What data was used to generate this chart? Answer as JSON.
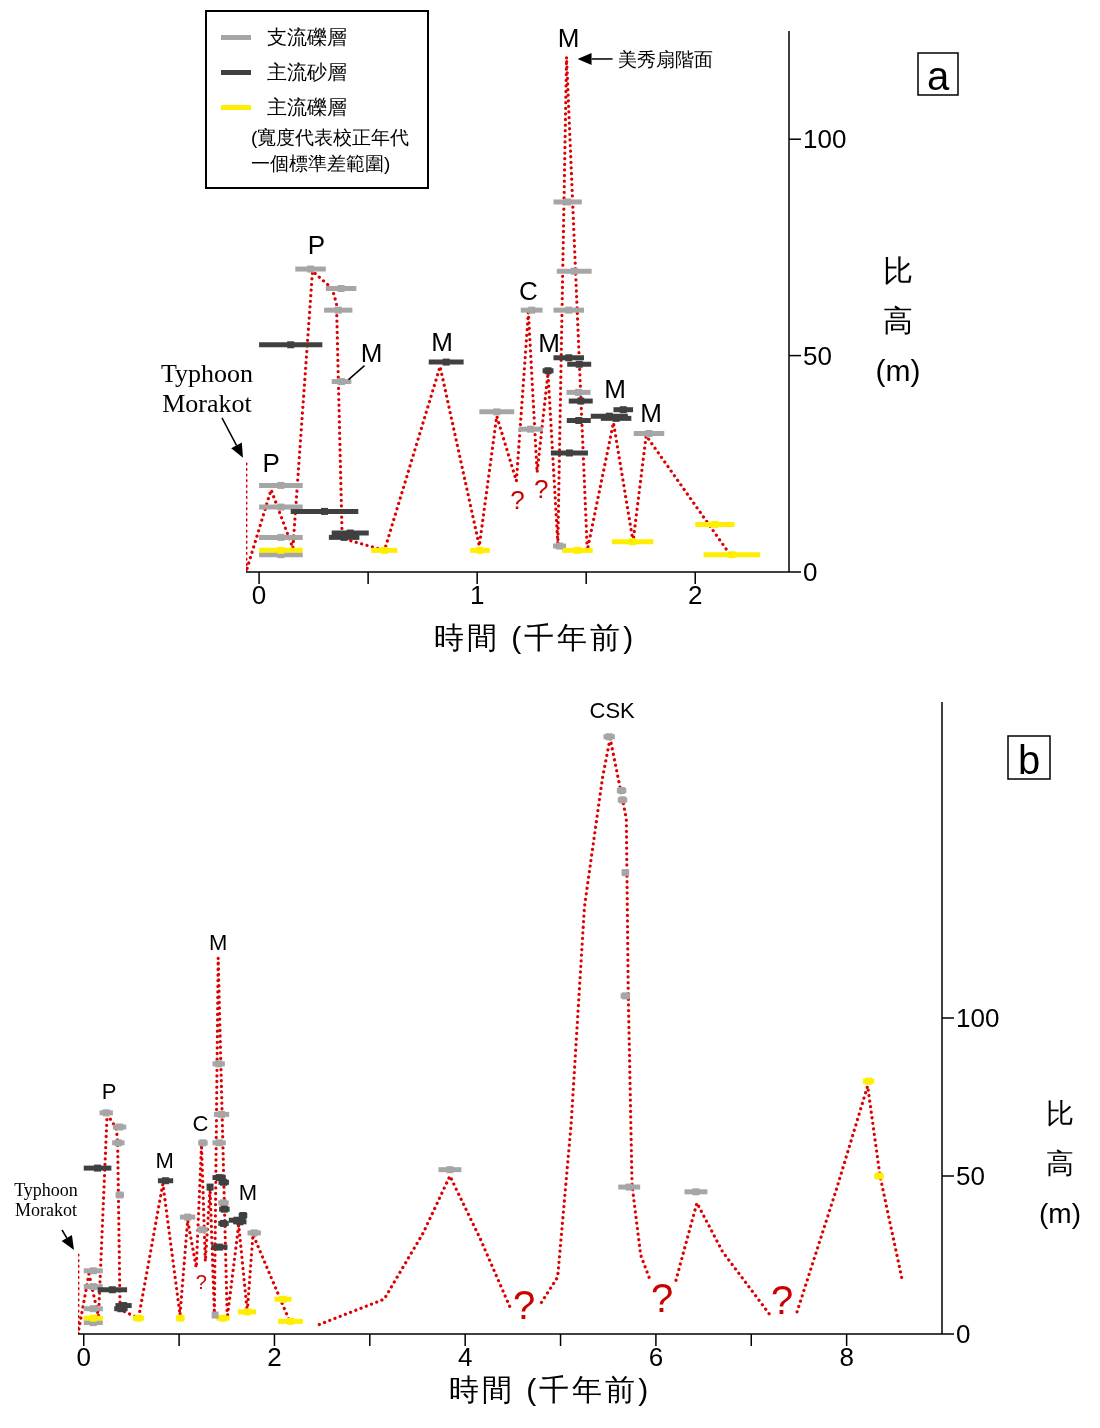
{
  "chart_data": [
    {
      "type": "scatter",
      "xlabel": "時間 (千年前)",
      "ylabel": "比高 (m)",
      "xlim": [
        -0.06,
        2.43
      ],
      "ylim": [
        0,
        125
      ],
      "xticks": [
        0,
        {
          "value": 0.5,
          "label": null
        },
        1,
        {
          "value": 1.5,
          "label": null
        },
        2
      ],
      "yticks": [
        0,
        50,
        100
      ],
      "legend": "top left",
      "marker": "square",
      "series": [
        {
          "name": "支流礫層",
          "color": "#a6a6a6",
          "x": [
            0.1,
            0.1,
            0.1,
            0.1,
            0.236,
            0.376,
            0.363,
            0.378,
            1.09,
            1.25,
            1.245,
            1.415,
            1.445,
            1.42,
            1.465,
            1.378,
            1.788
          ],
          "values": [
            20,
            15,
            8,
            4,
            70,
            65.5,
            60.5,
            44,
            37,
            60.5,
            33,
            85.5,
            69.5,
            60.5,
            41.5,
            6,
            32
          ],
          "xerrors": [
            0.1,
            0.1,
            0.1,
            0.1,
            0.07,
            0.07,
            0.065,
            0.045,
            0.08,
            0.05,
            0.055,
            0.065,
            0.08,
            0.07,
            0.055,
            0.03,
            0.07
          ]
        },
        {
          "name": "主流砂層",
          "color": "#404040",
          "x": [
            0.145,
            0.3,
            0.418,
            0.39,
            0.858,
            1.325,
            1.42,
            1.468,
            1.475,
            1.466,
            1.423,
            1.606,
            1.637,
            1.67
          ],
          "values": [
            52.5,
            14,
            9,
            8,
            48.5,
            46.5,
            49.5,
            48,
            39.5,
            35,
            27.5,
            36,
            35.5,
            37.5
          ],
          "xerrors": [
            0.145,
            0.155,
            0.085,
            0.07,
            0.08,
            0.025,
            0.07,
            0.055,
            0.055,
            0.055,
            0.085,
            0.085,
            0.07,
            0.045
          ]
        },
        {
          "name": "主流礫層",
          "color": "#ffee00",
          "x": [
            0.1,
            0.574,
            1.013,
            1.46,
            1.713,
            2.09,
            2.168
          ],
          "values": [
            5,
            5,
            5,
            5,
            7,
            11,
            4
          ],
          "xerrors": [
            0.1,
            0.06,
            0.045,
            0.07,
            0.095,
            0.09,
            0.13
          ]
        },
        {
          "type": "line",
          "color": "#dd0000",
          "line_style": "dotted",
          "marker": "none",
          "x": [
            -0.06,
            -0.06,
            0.055,
            0.155,
            0.245,
            0.335,
            0.355,
            0.38,
            0.4,
            0.575,
            0.83,
            1.01,
            1.09,
            1.18,
            1.235,
            1.275,
            1.325,
            1.37,
            1.41,
            1.505,
            1.625,
            1.715,
            1.775,
            2.16
          ],
          "values": [
            25,
            0,
            19,
            5.5,
            69.5,
            65.5,
            62,
            10,
            7.5,
            5,
            47.5,
            6,
            36,
            21,
            60,
            23,
            46,
            6.5,
            119,
            5,
            34.5,
            7,
            31.5,
            4
          ]
        }
      ],
      "annotations": [
        {
          "text": "Typhoon Morakot",
          "x": -0.06,
          "y": 25
        },
        {
          "text": "P",
          "x": 0.055,
          "y": 19
        },
        {
          "text": "P",
          "x": 0.245,
          "y": 69.5
        },
        {
          "text": "M",
          "x": 0.378,
          "y": 44
        },
        {
          "text": "M",
          "x": 0.858,
          "y": 48.5
        },
        {
          "text": "C",
          "x": 1.235,
          "y": 60
        },
        {
          "text": "?",
          "x": 1.18,
          "y": 21
        },
        {
          "text": "?",
          "x": 1.275,
          "y": 23
        },
        {
          "text": "M",
          "x": 1.325,
          "y": 46.5
        },
        {
          "text": "M",
          "x": 1.41,
          "y": 119
        },
        {
          "text": "美秀扇階面",
          "x": 1.41,
          "y": 119
        },
        {
          "text": "M",
          "x": 1.637,
          "y": 35.5
        },
        {
          "text": "M",
          "x": 1.788,
          "y": 32
        },
        "(寬度代表校正年代一個標準差範圍)",
        "a"
      ]
    },
    {
      "type": "scatter",
      "xlabel": "時間 (千年前)",
      "ylabel": "比高 (m)",
      "xlim": [
        -0.06,
        9.0
      ],
      "ylim": [
        0,
        200
      ],
      "xticks": [
        0,
        {
          "value": 1,
          "label": null
        },
        2,
        {
          "value": 3,
          "label": null
        },
        4,
        {
          "value": 5,
          "label": null
        },
        6,
        {
          "value": 7,
          "label": null
        },
        8
      ],
      "yticks": [
        0,
        50,
        100
      ],
      "marker": "square",
      "series": [
        {
          "color": "#a6a6a6",
          "x": [
            0.1,
            0.1,
            0.1,
            0.1,
            0.236,
            0.376,
            0.363,
            0.378,
            1.09,
            1.25,
            1.245,
            1.415,
            1.445,
            1.42,
            1.465,
            1.378,
            1.788,
            3.84,
            5.51,
            5.64,
            5.65,
            5.68,
            5.68,
            5.72,
            6.42
          ],
          "values": [
            20,
            15,
            8,
            3.6,
            70,
            65.5,
            60.5,
            44,
            37,
            60.5,
            33,
            85.5,
            69.5,
            60.5,
            41.5,
            6,
            32,
            52,
            189,
            172,
            169,
            146,
            107,
            46.5,
            45
          ],
          "xerrors": [
            0.1,
            0.1,
            0.1,
            0.1,
            0.07,
            0.07,
            0.065,
            0.045,
            0.08,
            0.05,
            0.055,
            0.065,
            0.08,
            0.07,
            0.055,
            0.03,
            0.07,
            0.12,
            0.06,
            0.05,
            0.05,
            0.04,
            0.05,
            0.115,
            0.12
          ]
        },
        {
          "color": "#404040",
          "x": [
            0.145,
            0.3,
            0.418,
            0.39,
            0.858,
            1.325,
            1.42,
            1.468,
            1.475,
            1.466,
            1.423,
            1.606,
            1.637,
            1.67
          ],
          "values": [
            52.5,
            14,
            9,
            8,
            48.5,
            46.5,
            49.5,
            48,
            39.5,
            35,
            27.5,
            36,
            35.5,
            37.5
          ],
          "xerrors": [
            0.145,
            0.155,
            0.085,
            0.07,
            0.08,
            0.025,
            0.07,
            0.055,
            0.055,
            0.055,
            0.085,
            0.085,
            0.07,
            0.045
          ]
        },
        {
          "color": "#ffee00",
          "x": [
            0.1,
            0.574,
            1.013,
            1.46,
            1.713,
            2.09,
            2.168,
            8.23,
            8.34
          ],
          "values": [
            5,
            5,
            5,
            5,
            7,
            11,
            4,
            80,
            50
          ],
          "xerrors": [
            0.1,
            0.06,
            0.045,
            0.07,
            0.095,
            0.09,
            0.13,
            0.06,
            0.05
          ]
        },
        {
          "type": "line",
          "color": "#dd0000",
          "line_style": "dotted",
          "marker": "none",
          "x": [
            -0.06,
            -0.06,
            0.055,
            0.155,
            0.245,
            0.335,
            0.355,
            0.38,
            0.4,
            0.575,
            0.83,
            1.01,
            1.09,
            1.18,
            1.235,
            1.275,
            1.325,
            1.37,
            1.41,
            1.505,
            1.625,
            1.715,
            1.775,
            2.16,
            2.3,
            2.47,
            3.15,
            3.56,
            3.84,
            4.16,
            4.47,
            4.63,
            4.8,
            4.97,
            5.11,
            5.25,
            5.44,
            5.52,
            5.63,
            5.69,
            5.71,
            5.75,
            5.84,
            5.94,
            6.07,
            6.21,
            6.43,
            6.7,
            7.21,
            7.33,
            7.48,
            7.89,
            8.22,
            8.35,
            8.58
          ],
          "values": [
            25,
            0,
            19,
            5.5,
            69.5,
            65.5,
            62,
            10,
            7.5,
            5,
            47.5,
            6,
            36,
            21,
            60,
            23,
            46,
            6.5,
            119,
            5,
            34.5,
            7,
            31.5,
            4,
            null,
            3,
            11,
            32,
            50,
            30,
            8.5,
            null,
            10,
            18,
            66,
            135,
            176,
            188.5,
            172,
            163,
            108,
            47,
            25,
            17,
            null,
            17,
            41.5,
            26,
            5.5,
            null,
            7,
            45.5,
            78.5,
            50,
            17.5
          ]
        }
      ],
      "annotations": [
        {
          "text": "Typhoon Morakot",
          "x": -0.06,
          "y": 25
        },
        {
          "text": "P",
          "x": 0.245,
          "y": 69.5
        },
        {
          "text": "C",
          "x": 1.235,
          "y": 60
        },
        {
          "text": "M",
          "x": 0.858,
          "y": 48.5
        },
        {
          "text": "M",
          "x": 1.41,
          "y": 119
        },
        {
          "text": "M",
          "x": 1.637,
          "y": 35.5
        },
        {
          "text": "?",
          "x": 1.18,
          "y": 21
        },
        {
          "text": "CSK",
          "x": 5.51,
          "y": 189
        },
        "?",
        "?",
        "?",
        "b"
      ]
    }
  ]
}
